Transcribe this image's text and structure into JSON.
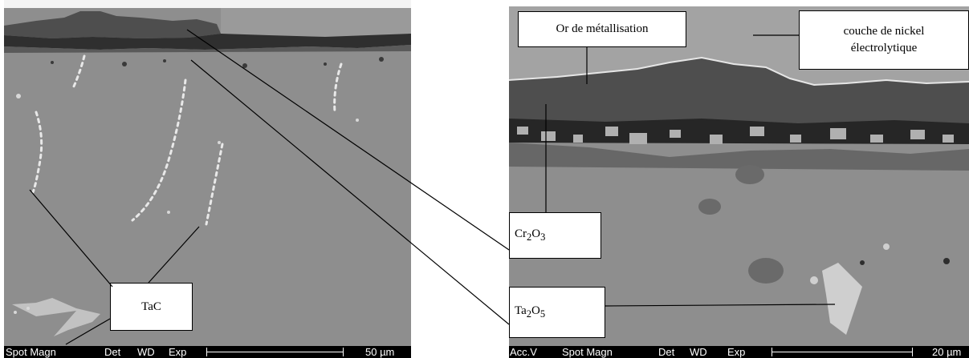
{
  "left_micrograph": {
    "scalebar": {
      "spot_magn": "Spot Magn",
      "det": "Det",
      "wd": "WD",
      "exp": "Exp",
      "scale": "50 µm"
    }
  },
  "right_micrograph": {
    "scalebar": {
      "acc_v": "Acc.V",
      "spot_magn": "Spot Magn",
      "det": "Det",
      "wd": "WD",
      "exp": "Exp",
      "scale": "20 µm"
    }
  },
  "labels": {
    "gold": "Or de métallisation",
    "nickel_line1": "couche de nickel",
    "nickel_line2": "électrolytique",
    "cr2o3": {
      "base": "Cr",
      "sub1": "2",
      "mid": "O",
      "sub2": "3"
    },
    "ta2o5": {
      "base": "Ta",
      "sub1": "2",
      "mid": "O",
      "sub2": "5"
    },
    "tac": "TaC"
  },
  "colors": {
    "matrix": "#8e8e8e",
    "gold_layer": "#4e4e4e",
    "oxide_dark": "#2a2a2a",
    "carbide_bright": "#e8e8e8"
  }
}
